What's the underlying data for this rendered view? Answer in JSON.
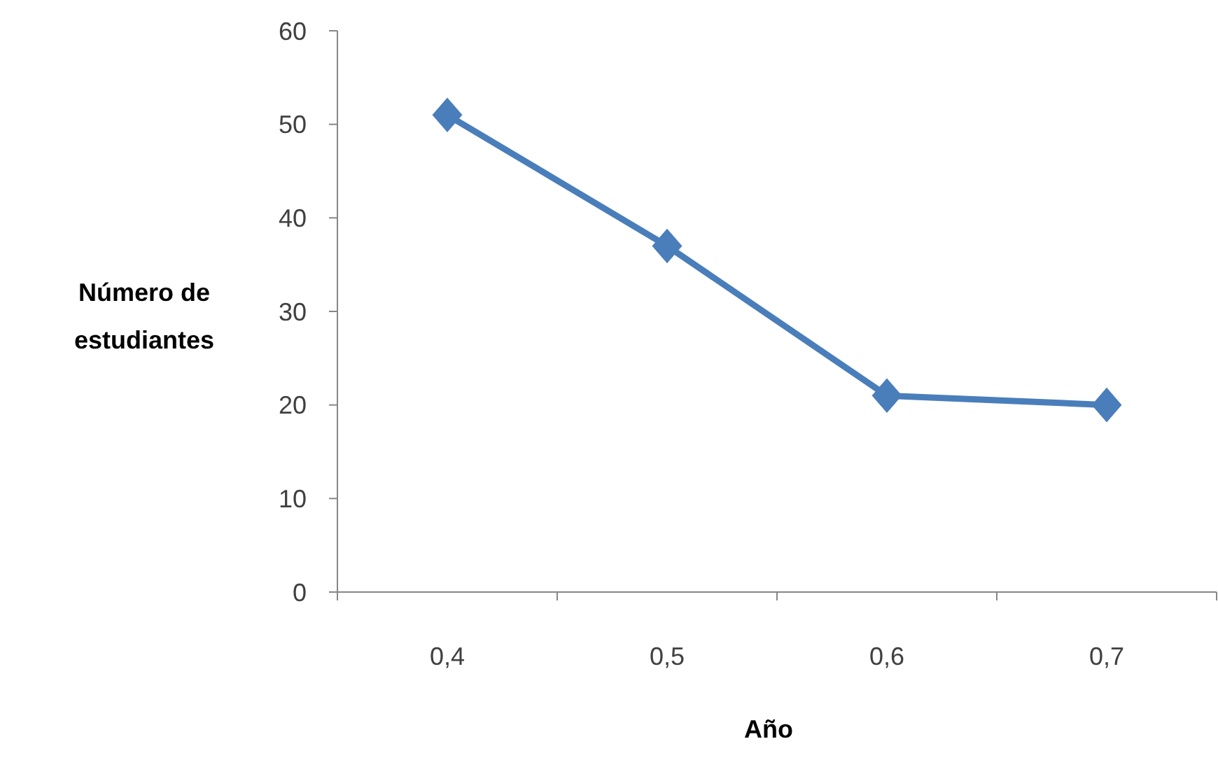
{
  "chart_data": {
    "type": "line",
    "xlabel": "Año",
    "ylabel": "Número de estudiantes",
    "categories": [
      "0,4",
      "0,5",
      "0,6",
      "0,7"
    ],
    "series": [
      {
        "color": "#4a7ebb",
        "values": [
          51,
          37,
          21,
          20
        ]
      }
    ],
    "ylim": [
      0,
      60
    ],
    "yticks": [
      0,
      10,
      20,
      30,
      40,
      50,
      60
    ],
    "grid": false,
    "marker": "diamond",
    "line_style": "solid"
  }
}
